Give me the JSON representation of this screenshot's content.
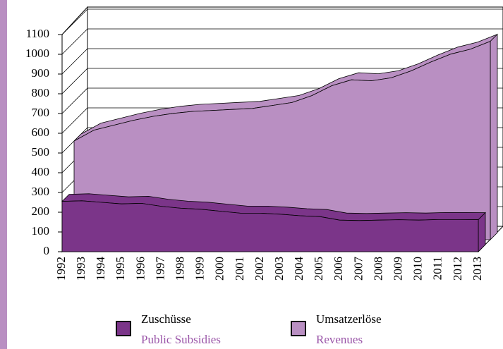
{
  "chart_data": {
    "type": "area3d",
    "categories": [
      "1992",
      "1993",
      "1994",
      "1995",
      "1996",
      "1997",
      "1998",
      "1999",
      "2000",
      "2001",
      "2002",
      "2003",
      "2004",
      "2005",
      "2006",
      "2007",
      "2008",
      "2009",
      "2010",
      "2011",
      "2012",
      "2013"
    ],
    "series": [
      {
        "name": "Zuschüsse",
        "subtitle": "Public Subsidies",
        "color": "#7b3589",
        "values": [
          255,
          258,
          250,
          242,
          245,
          230,
          220,
          215,
          205,
          195,
          195,
          190,
          182,
          178,
          160,
          158,
          160,
          162,
          160,
          163,
          163,
          162
        ]
      },
      {
        "name": "Umsatzerlöse",
        "subtitle": "Revenues",
        "color": "#b98fc2",
        "values": [
          500,
          555,
          580,
          605,
          625,
          640,
          650,
          655,
          660,
          665,
          680,
          695,
          730,
          780,
          810,
          805,
          820,
          855,
          900,
          940,
          965,
          1005
        ]
      }
    ],
    "ylim": [
      0,
      1100
    ],
    "yticks": [
      0,
      100,
      200,
      300,
      400,
      500,
      600,
      700,
      800,
      900,
      1000,
      1100
    ],
    "grid": true
  }
}
